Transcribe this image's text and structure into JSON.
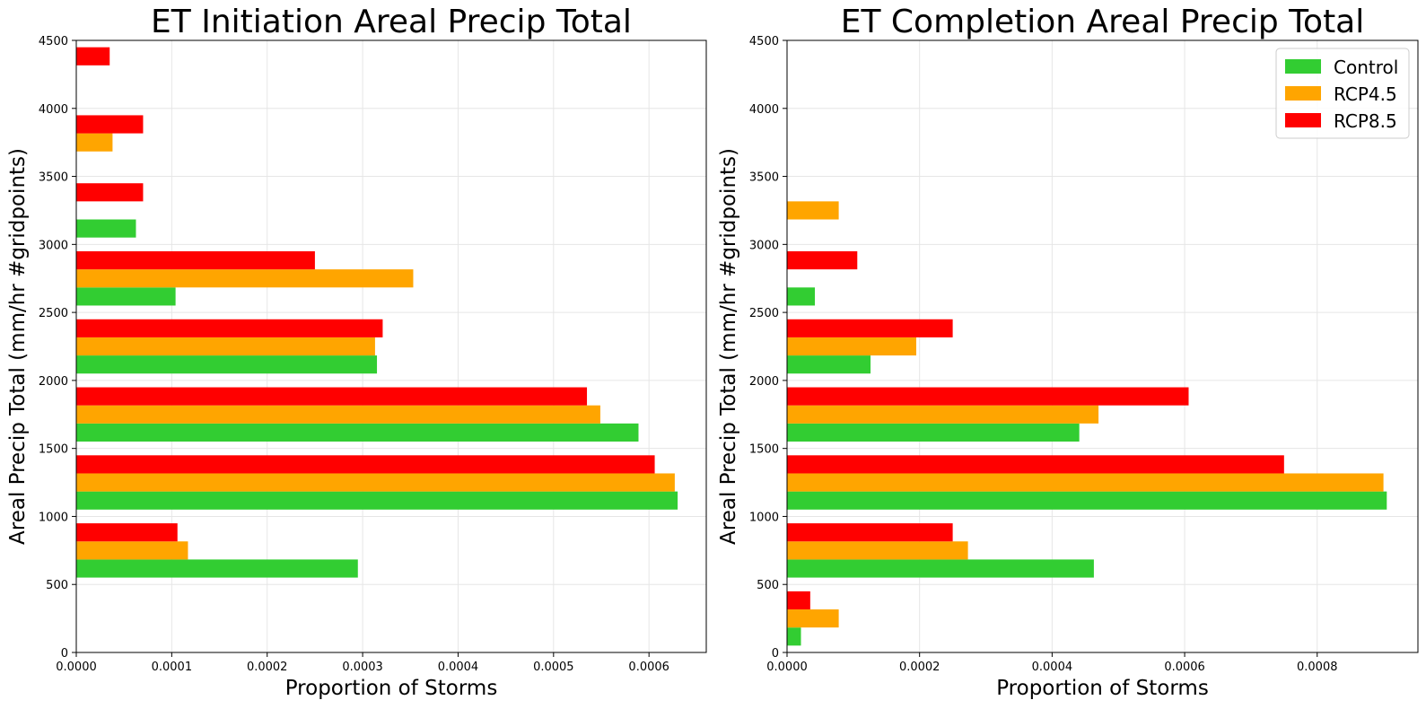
{
  "colors": {
    "Control": "#32cd32",
    "RCP4.5": "#ffa500",
    "RCP8.5": "#ff0000"
  },
  "chart_data": [
    {
      "type": "bar",
      "orientation": "horizontal",
      "title": "ET Initiation Areal Precip Total",
      "xlabel": "Proportion of Storms",
      "ylabel": "Areal Precip Total (mm/hr #gridpoints)",
      "xlim": [
        0,
        0.00066
      ],
      "ylim": [
        0,
        4500
      ],
      "xticks": [
        "0.0000",
        "0.0001",
        "0.0002",
        "0.0003",
        "0.0004",
        "0.0005",
        "0.0006"
      ],
      "xtick_values": [
        0,
        0.0001,
        0.0002,
        0.0003,
        0.0004,
        0.0005,
        0.0006
      ],
      "yticks": [
        "0",
        "500",
        "1000",
        "1500",
        "2000",
        "2500",
        "3000",
        "3500",
        "4000",
        "4500"
      ],
      "ytick_values": [
        0,
        500,
        1000,
        1500,
        2000,
        2500,
        3000,
        3500,
        4000,
        4500
      ],
      "grid": true,
      "legend": null,
      "bin_centers": [
        250,
        750,
        1250,
        1750,
        2250,
        2750,
        3250,
        3750,
        4250
      ],
      "bar_height": 133,
      "series": [
        {
          "name": "Control",
          "values": [
            0,
            0.000295,
            0.00063,
            0.000589,
            0.000315,
            0.000104,
            6.25e-05,
            0,
            0
          ]
        },
        {
          "name": "RCP4.5",
          "values": [
            0,
            0.000117,
            0.000627,
            0.000549,
            0.000313,
            0.000353,
            0,
            3.8e-05,
            0
          ]
        },
        {
          "name": "RCP8.5",
          "values": [
            0,
            0.000106,
            0.000606,
            0.000535,
            0.000321,
            0.00025,
            7e-05,
            7e-05,
            3.5e-05
          ]
        }
      ]
    },
    {
      "type": "bar",
      "orientation": "horizontal",
      "title": "ET Completion Areal Precip Total",
      "xlabel": "Proportion of Storms",
      "ylabel": "Areal Precip Total (mm/hr #gridpoints)",
      "xlim": [
        0,
        0.000952
      ],
      "ylim": [
        0,
        4500
      ],
      "xticks": [
        "0.0000",
        "0.0002",
        "0.0004",
        "0.0006",
        "0.0008"
      ],
      "xtick_values": [
        0,
        0.0002,
        0.0004,
        0.0006,
        0.0008
      ],
      "yticks": [
        "0",
        "500",
        "1000",
        "1500",
        "2000",
        "2500",
        "3000",
        "3500",
        "4000",
        "4500"
      ],
      "ytick_values": [
        0,
        500,
        1000,
        1500,
        2000,
        2500,
        3000,
        3500,
        4000,
        4500
      ],
      "grid": true,
      "legend": "top-right",
      "bin_centers": [
        250,
        750,
        1250,
        1750,
        2250,
        2750,
        3250,
        3750,
        4250
      ],
      "bar_height": 133,
      "series": [
        {
          "name": "Control",
          "values": [
            2.1e-05,
            0.000463,
            0.000905,
            0.000441,
            0.000126,
            4.2e-05,
            0,
            0,
            0
          ]
        },
        {
          "name": "RCP4.5",
          "values": [
            7.8e-05,
            0.000273,
            0.0009,
            0.00047,
            0.000195,
            0,
            7.8e-05,
            0,
            0
          ]
        },
        {
          "name": "RCP8.5",
          "values": [
            3.5e-05,
            0.00025,
            0.00075,
            0.000606,
            0.00025,
            0.000106,
            0,
            0,
            0
          ]
        }
      ]
    }
  ]
}
